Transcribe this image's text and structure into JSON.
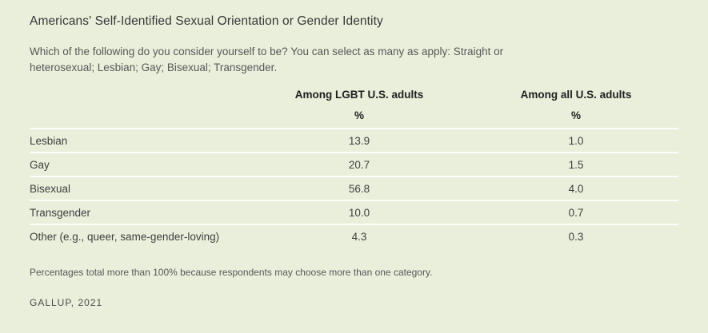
{
  "page": {
    "background_color": "#e9efdb",
    "divider_color": "#fdfefb"
  },
  "header": {
    "title": "Americans' Self-Identified Sexual Orientation or Gender Identity",
    "question": "Which of the following do you consider yourself to be? You can select as many as apply: Straight or heterosexual; Lesbian; Gay; Bisexual; Transgender."
  },
  "chart_data": {
    "type": "table",
    "title": "Americans' Self-Identified Sexual Orientation or Gender Identity",
    "columns": [
      "Among LGBT U.S. adults",
      "Among all U.S. adults"
    ],
    "unit": "%",
    "rows": [
      {
        "label": "Lesbian",
        "among_lgbt": "13.9",
        "among_all": "1.0"
      },
      {
        "label": "Gay",
        "among_lgbt": "20.7",
        "among_all": "1.5"
      },
      {
        "label": "Bisexual",
        "among_lgbt": "56.8",
        "among_all": "4.0"
      },
      {
        "label": "Transgender",
        "among_lgbt": "10.0",
        "among_all": "0.7"
      },
      {
        "label": "Other (e.g., queer, same-gender-loving)",
        "among_lgbt": "4.3",
        "among_all": "0.3"
      }
    ]
  },
  "footer": {
    "note": "Percentages total more than 100% because respondents may choose more than one category.",
    "source": "GALLUP, 2021"
  }
}
